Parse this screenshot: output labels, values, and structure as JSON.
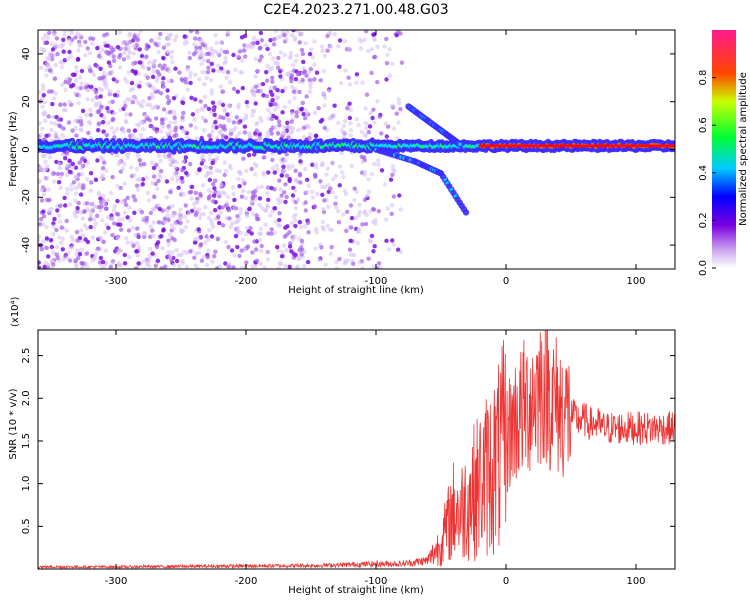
{
  "title": "C2E4.2023.271.00.48.G03",
  "chart_data": [
    {
      "type": "heatmap",
      "xlabel": "Height of straight line (km)",
      "ylabel": "Frequency (Hz)",
      "xlim": [
        -360,
        130
      ],
      "ylim": [
        -50,
        50
      ],
      "xticks": [
        -300,
        -200,
        -100,
        0,
        100
      ],
      "yticks": [
        -40,
        -20,
        0,
        20,
        40
      ],
      "colorbar": {
        "label": "Normalized spectral amplitude",
        "range": [
          0.0,
          1.0
        ],
        "ticks": [
          0.0,
          0.2,
          0.4,
          0.6,
          0.8
        ],
        "colors": [
          "#ffffff",
          "#8a2be2",
          "#0000ff",
          "#00ffff",
          "#00ff00",
          "#ffff00",
          "#ff0000",
          "#ff1493"
        ]
      },
      "features": {
        "noise_region_x": [
          -360,
          -80
        ],
        "carrier_frequency_hz": 1.5,
        "branches": [
          {
            "x": [
              -100,
              -70,
              -50,
              -30
            ],
            "y": [
              0,
              -5,
              -10,
              -27
            ]
          },
          {
            "x": [
              -75,
              -60,
              -45,
              -35
            ],
            "y": [
              18,
              12,
              6,
              2
            ]
          }
        ]
      }
    },
    {
      "type": "line",
      "xlabel": "Height of straight line (km)",
      "ylabel": "SNR (10 * v/v)",
      "yexp": "(x10⁴)",
      "xlim": [
        -360,
        130
      ],
      "ylim": [
        0,
        28000
      ],
      "xticks": [
        -300,
        -200,
        -100,
        0,
        100
      ],
      "yticks": [
        5000,
        10000,
        15000,
        20000,
        25000
      ],
      "ytick_labels": [
        "0.5",
        "1.0",
        "1.5",
        "2.0",
        "2.5"
      ],
      "color": "#ee3333",
      "series": [
        {
          "x": [
            -360,
            -300,
            -250,
            -200,
            -150,
            -120,
            -100,
            -80,
            -60,
            -50,
            -45,
            -40,
            -35,
            -30,
            -25,
            -20,
            -15,
            -10,
            -5,
            0,
            5,
            10,
            15,
            20,
            25,
            30,
            35,
            40,
            45,
            50,
            55,
            60,
            65,
            70,
            75,
            80,
            90,
            100,
            110,
            120,
            130
          ],
          "y": [
            250,
            250,
            300,
            350,
            400,
            500,
            600,
            600,
            1000,
            3000,
            5000,
            7000,
            6500,
            8000,
            9000,
            10000,
            11000,
            12000,
            13000,
            15000,
            17000,
            18000,
            19000,
            20000,
            21000,
            22000,
            20000,
            19000,
            18500,
            18000,
            17500,
            17500,
            17000,
            17000,
            16500,
            16500,
            16500,
            16500,
            16500,
            16500,
            16500
          ]
        }
      ]
    }
  ]
}
